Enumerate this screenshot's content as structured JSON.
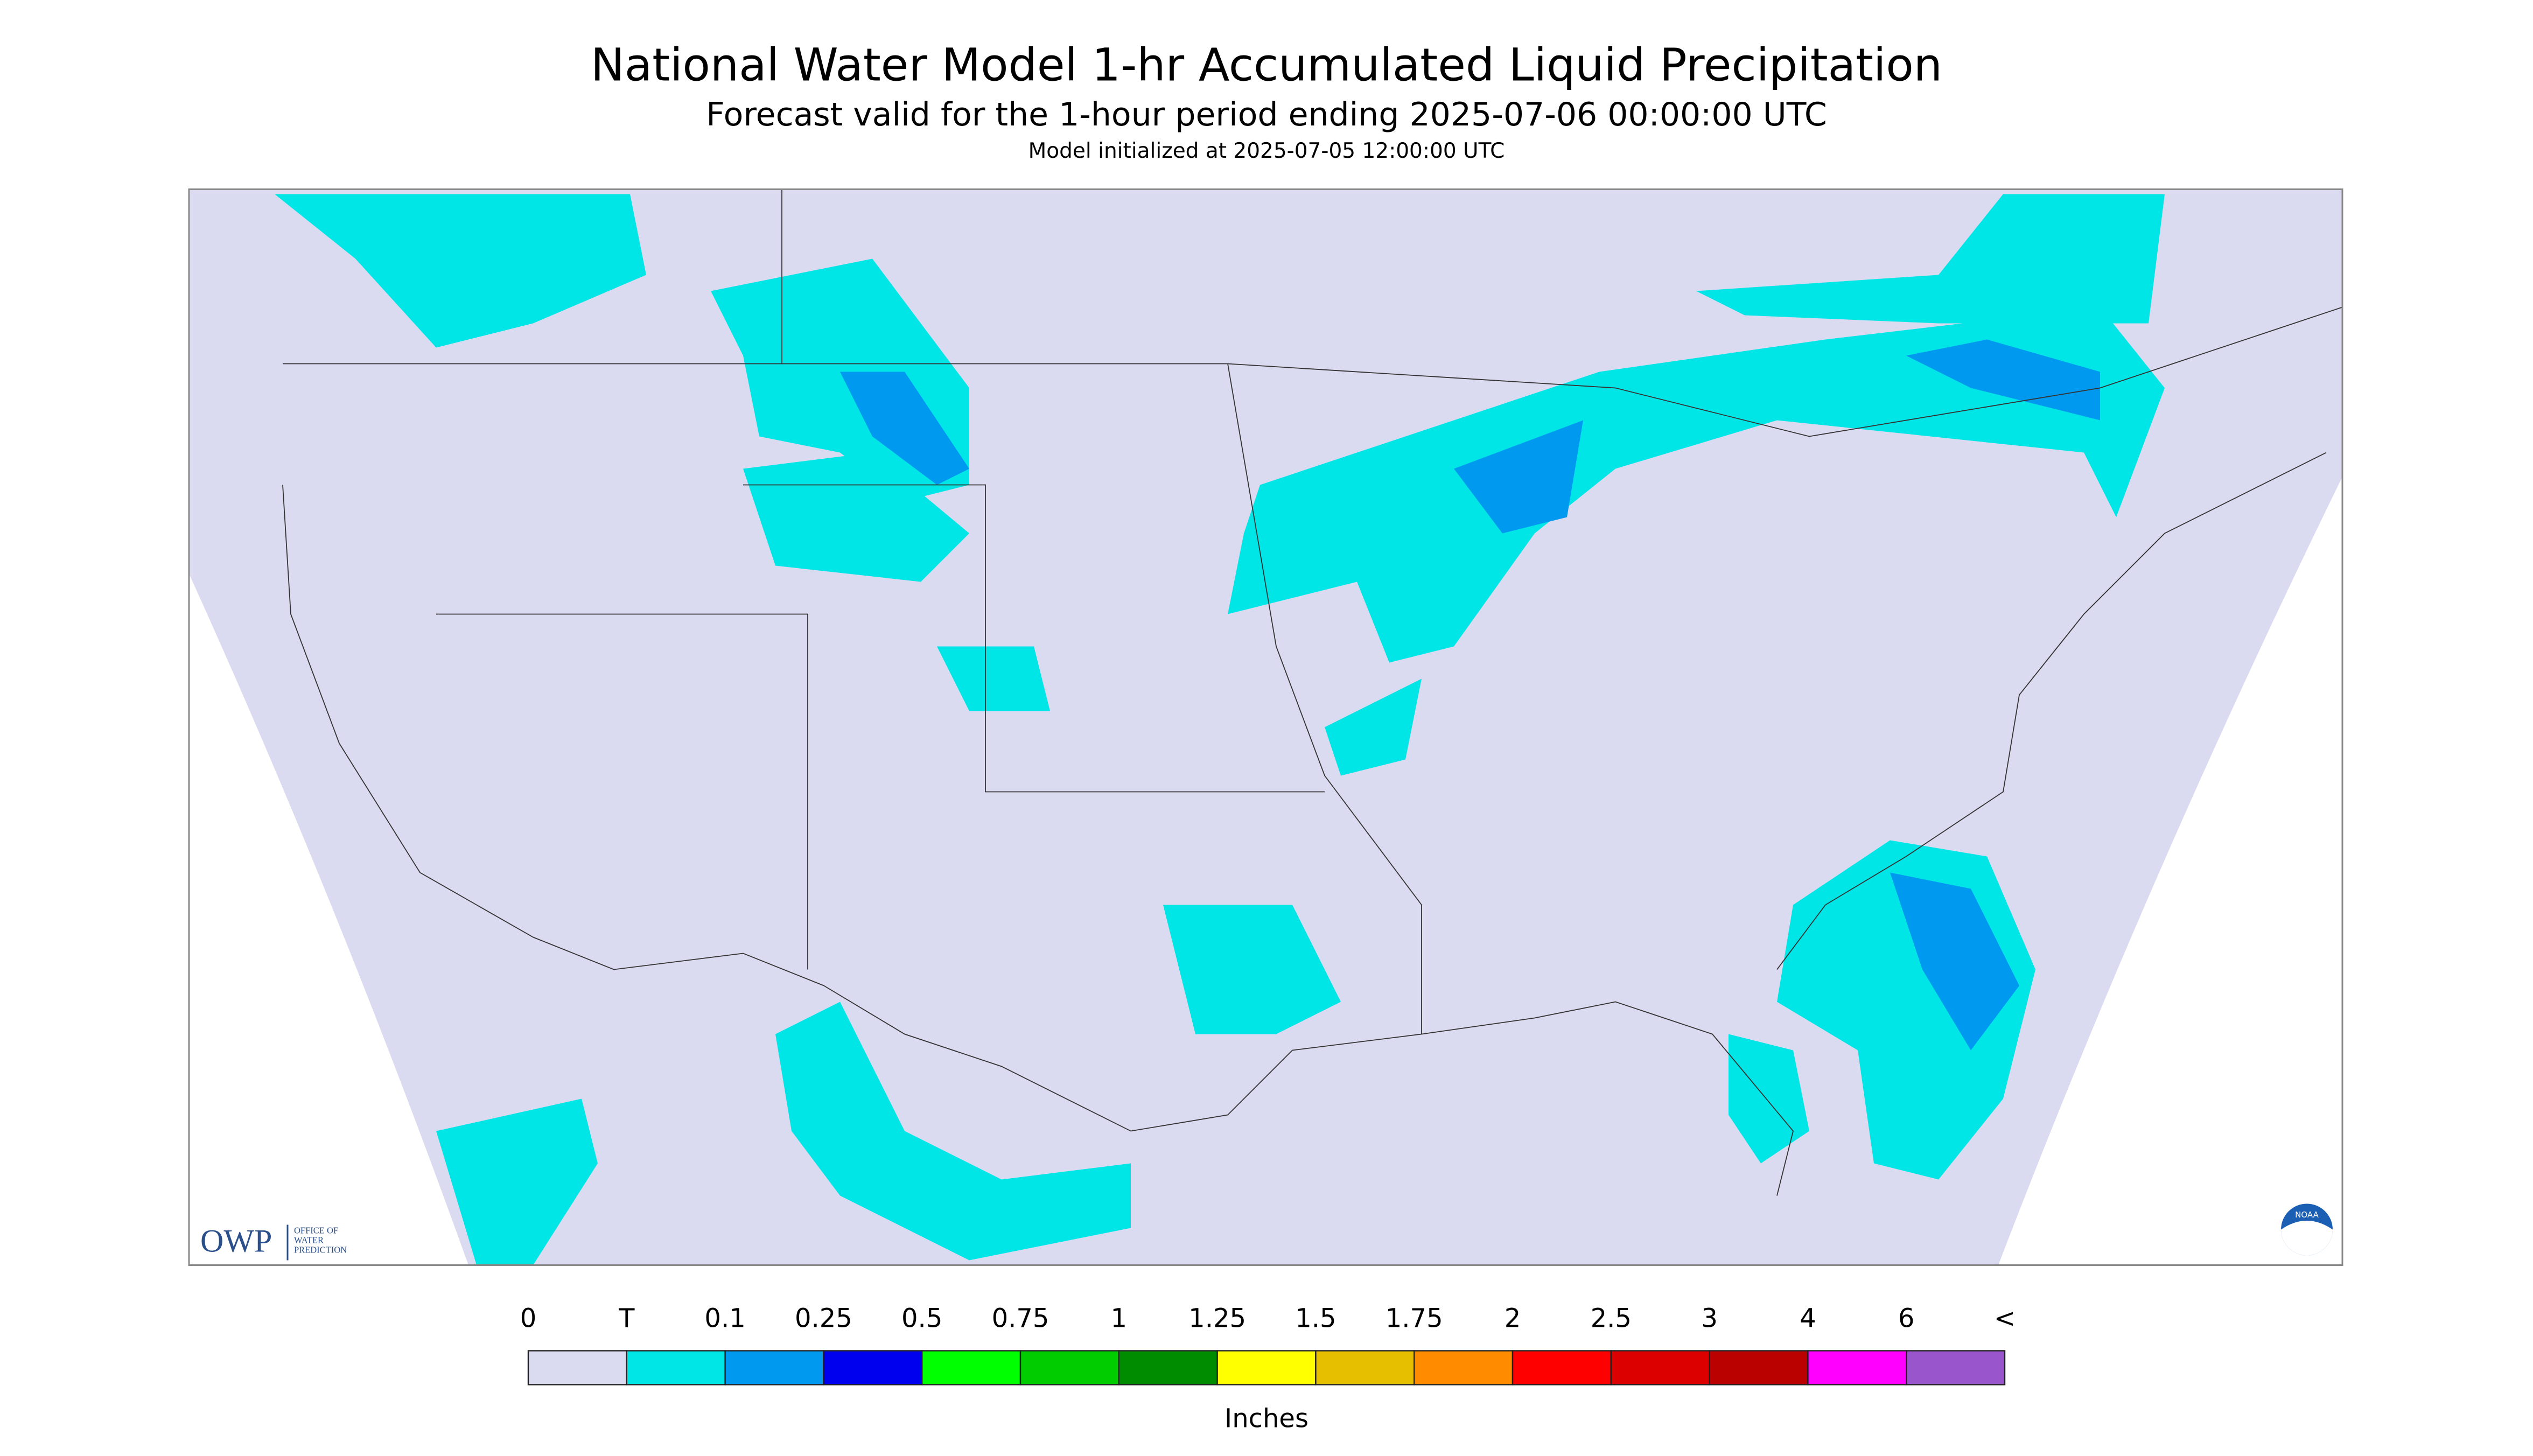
{
  "header": {
    "title": "National Water Model 1-hr Accumulated Liquid Precipitation",
    "subtitle": "Forecast valid for the 1-hour period ending 2025-07-06 00:00:00 UTC",
    "init": "Model initialized at 2025-07-05 12:00:00 UTC"
  },
  "logos": {
    "owp": "OWP",
    "owp_text": [
      "OFFICE OF",
      "WATER",
      "PREDICTION"
    ],
    "noaa": "NOAA"
  },
  "legend": {
    "labels": [
      "0",
      "T",
      "0.1",
      "0.25",
      "0.5",
      "0.75",
      "1",
      "1.25",
      "1.5",
      "1.75",
      "2",
      "2.5",
      "3",
      "4",
      "6",
      "<"
    ],
    "colors": [
      "#dadaf0",
      "#00e6e6",
      "#0099f0",
      "#0000ee",
      "#00ff00",
      "#00cc00",
      "#008c00",
      "#ffff00",
      "#e6c000",
      "#ff8c00",
      "#ff0000",
      "#dd0000",
      "#bb0000",
      "#ff00ff",
      "#9955cc"
    ],
    "unit": "Inches"
  }
}
